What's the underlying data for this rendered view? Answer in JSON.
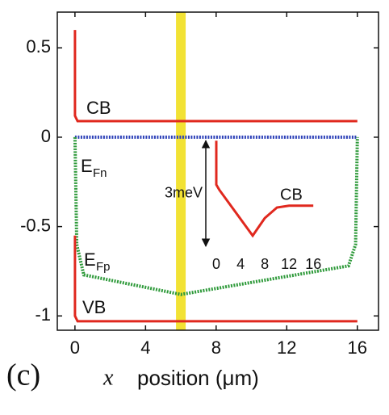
{
  "chart_data": [
    {
      "type": "line",
      "panel_label": "(c)",
      "xlabel_var": "x",
      "xlabel": "position (μm)",
      "xlim": [
        -1,
        17.2
      ],
      "ylim": [
        -1.08,
        0.7
      ],
      "xticks": [
        0,
        4,
        8,
        12,
        16
      ],
      "yticks": [
        0.5,
        0,
        -0.5,
        -1
      ],
      "highlight_x": 6,
      "highlight_color": "#f2e234",
      "series": [
        {
          "name": "CB",
          "color": "#e0281e",
          "style": "solid",
          "x": [
            0,
            0,
            0.15,
            16
          ],
          "values": [
            0.6,
            0.12,
            0.09,
            0.09
          ]
        },
        {
          "name": "EFn",
          "color": "#2b3fb8",
          "style": "dotted",
          "x": [
            0,
            16
          ],
          "values": [
            0,
            0
          ]
        },
        {
          "name": "EFp",
          "color": "#2e9a3a",
          "style": "dotted",
          "x": [
            0,
            0.1,
            0.5,
            6,
            15.5,
            15.9,
            16
          ],
          "values": [
            0,
            -0.6,
            -0.77,
            -0.88,
            -0.72,
            -0.6,
            0
          ]
        },
        {
          "name": "VB",
          "color": "#e0281e",
          "style": "solid",
          "x": [
            0,
            0,
            0.15,
            16
          ],
          "values": [
            -0.55,
            -1.0,
            -1.03,
            -1.03
          ]
        }
      ],
      "annotations": [
        {
          "text": "CB"
        },
        {
          "text": "E",
          "sub": "Fn"
        },
        {
          "text": "E",
          "sub": "Fp"
        },
        {
          "text": "VB"
        }
      ]
    },
    {
      "type": "line",
      "xlim": [
        -0.67,
        16.9
      ],
      "ylim": [
        -0.3,
        3.05
      ],
      "xticks": [
        0,
        4,
        8,
        12,
        16
      ],
      "span_label": "3meV",
      "span": [
        0,
        3
      ],
      "series": [
        {
          "name": "CB",
          "color": "#e0281e",
          "style": "solid",
          "x": [
            0,
            0,
            0.5,
            6,
            8,
            10,
            12,
            16
          ],
          "values": [
            3,
            1.75,
            1.6,
            0.3,
            0.8,
            1.1,
            1.15,
            1.15
          ]
        }
      ]
    }
  ]
}
